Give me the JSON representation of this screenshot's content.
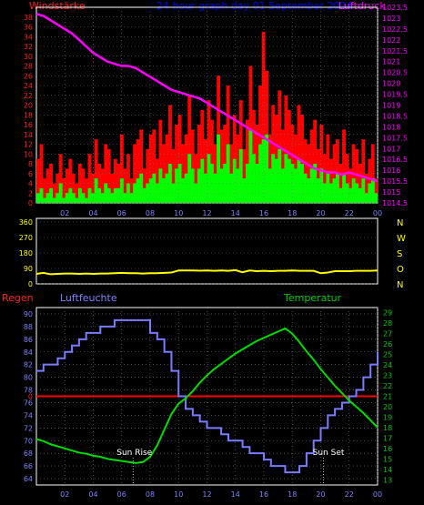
{
  "colors": {
    "background": "#000000",
    "frame": "#ffffff",
    "windspeed": "#ff0000",
    "windgust": "#00ff00",
    "pressure": "#ff00ff",
    "direction": "#ffff00",
    "humidity": "#7b7bff",
    "temperature": "#00dd00",
    "rain": "#ff0000",
    "title": "#0000ff",
    "scale_red": "#ff2020",
    "scale_pink": "#ff00ff",
    "scale_blue": "#8080ff",
    "scale_green": "#00cc00",
    "scale_yellow": "#ffff00",
    "grid": "#777777"
  },
  "header": {
    "left": "Windstärke",
    "title": "24 hour graph day  01 September 2024",
    "right": "Luftdruck"
  },
  "labels": {
    "regen": "Regen",
    "luftfeuchte": "Luftfeuchte",
    "temperatur": "Temperatur",
    "sun_rise": "Sun Rise",
    "sun_set": "Sun Set"
  },
  "chart_data": [
    {
      "type": "bar",
      "name": "wind",
      "x_range": [
        0,
        24
      ],
      "x_ticks": [
        "02",
        "04",
        "06",
        "08",
        "10",
        "12",
        "14",
        "16",
        "18",
        "20",
        "22",
        "00"
      ],
      "y_left_ticks": [
        0,
        2,
        4,
        6,
        8,
        10,
        12,
        14,
        16,
        18,
        20,
        22,
        24,
        26,
        28,
        30,
        32,
        34,
        36,
        38
      ],
      "y_left_range": [
        0,
        40
      ],
      "y_right_ticks": [
        "1014.5",
        "1015",
        "1015.5",
        "1016",
        "1016.5",
        "1017",
        "1017.5",
        "1018",
        "1018.5",
        "1019",
        "1019.5",
        "1020",
        "1020.5",
        "1021",
        "1021.5",
        "1022",
        "1022.5",
        "1023",
        "1023.5"
      ],
      "y_right_range": [
        1014.5,
        1023.5
      ],
      "series": [
        {
          "name": "windspeed",
          "values": [
            9,
            12,
            5,
            7,
            8,
            4,
            6,
            10,
            5,
            7,
            9,
            6,
            4,
            8,
            7,
            5,
            10,
            6,
            13,
            8,
            7,
            12,
            11,
            6,
            9,
            8,
            14,
            7,
            10,
            5,
            12,
            13,
            15,
            7,
            11,
            14,
            15,
            9,
            17,
            12,
            14,
            20,
            11,
            16,
            18,
            12,
            14,
            22,
            15,
            10,
            16,
            19,
            13,
            21,
            17,
            12,
            26,
            15,
            16,
            24,
            12,
            18,
            14,
            21,
            11,
            17,
            28,
            19,
            16,
            24,
            35,
            27,
            14,
            20,
            18,
            23,
            15,
            22,
            19,
            16,
            14,
            20,
            18,
            13,
            12,
            15,
            17,
            11,
            16,
            10,
            14,
            9,
            12,
            13,
            8,
            15,
            10,
            7,
            12,
            11,
            8,
            13,
            6,
            9,
            12,
            5
          ]
        },
        {
          "name": "windgust",
          "values": [
            2,
            3,
            1,
            2,
            3,
            1,
            2,
            4,
            1,
            2,
            3,
            2,
            1,
            3,
            2,
            1,
            3,
            2,
            5,
            3,
            2,
            4,
            3,
            2,
            3,
            3,
            5,
            2,
            4,
            2,
            4,
            5,
            6,
            3,
            4,
            5,
            6,
            4,
            7,
            5,
            6,
            8,
            4,
            7,
            8,
            5,
            6,
            10,
            7,
            4,
            7,
            9,
            6,
            10,
            8,
            6,
            14,
            7,
            8,
            12,
            6,
            9,
            7,
            11,
            5,
            8,
            15,
            10,
            8,
            12,
            13,
            14,
            7,
            10,
            9,
            11,
            7,
            10,
            9,
            8,
            7,
            9,
            8,
            6,
            5,
            7,
            8,
            5,
            7,
            4,
            6,
            4,
            5,
            6,
            3,
            6,
            4,
            3,
            5,
            4,
            3,
            5,
            2,
            4,
            5,
            2
          ]
        },
        {
          "name": "pressure",
          "x": [
            0,
            0.5,
            1,
            1.5,
            2,
            2.5,
            3,
            3.5,
            4,
            4.5,
            5,
            5.5,
            6,
            6.5,
            7,
            7.5,
            8,
            8.5,
            9,
            9.5,
            10,
            10.5,
            11,
            11.5,
            12,
            12.5,
            13,
            13.5,
            14,
            14.5,
            15,
            15.5,
            16,
            16.5,
            17,
            17.5,
            18,
            18.5,
            19,
            19.5,
            20,
            20.5,
            21,
            21.5,
            22,
            22.5,
            23,
            23.5,
            24
          ],
          "values": [
            1023.2,
            1023.1,
            1022.9,
            1022.7,
            1022.5,
            1022.3,
            1022.0,
            1021.7,
            1021.4,
            1021.2,
            1021.0,
            1020.9,
            1020.8,
            1020.8,
            1020.7,
            1020.5,
            1020.3,
            1020.1,
            1019.9,
            1019.7,
            1019.6,
            1019.5,
            1019.4,
            1019.3,
            1019.1,
            1018.9,
            1018.7,
            1018.5,
            1018.3,
            1018.1,
            1017.9,
            1017.7,
            1017.5,
            1017.3,
            1017.1,
            1016.9,
            1016.7,
            1016.5,
            1016.3,
            1016.1,
            1016.0,
            1015.9,
            1015.9,
            1015.8,
            1015.9,
            1015.8,
            1015.7,
            1015.6,
            1015.5
          ]
        }
      ]
    },
    {
      "type": "line",
      "name": "direction",
      "x_range": [
        0,
        24
      ],
      "y_left_ticks": [
        0,
        90,
        180,
        270,
        360
      ],
      "y_range": [
        0,
        360
      ],
      "y_right_labels": [
        "N",
        "W",
        "S",
        "O",
        "N"
      ],
      "series": [
        {
          "name": "direction",
          "x": [
            0,
            0.5,
            1,
            1.5,
            2,
            2.5,
            3,
            3.5,
            4,
            4.5,
            5,
            5.5,
            6,
            6.5,
            7,
            7.5,
            8,
            8.5,
            9,
            9.5,
            10,
            10.5,
            11,
            11.5,
            12,
            12.5,
            13,
            13.5,
            14,
            14.5,
            15,
            15.5,
            16,
            16.5,
            17,
            17.5,
            18,
            18.5,
            19,
            19.5,
            20,
            20.5,
            21,
            21.5,
            22,
            22.5,
            23,
            23.5,
            24
          ],
          "values": [
            58,
            64,
            56,
            58,
            60,
            60,
            58,
            60,
            58,
            60,
            60,
            62,
            64,
            62,
            62,
            60,
            62,
            62,
            64,
            66,
            78,
            78,
            78,
            77,
            78,
            76,
            78,
            76,
            80,
            68,
            78,
            74,
            76,
            74,
            76,
            76,
            78,
            76,
            76,
            76,
            62,
            66,
            74,
            74,
            74,
            76,
            76,
            76,
            78
          ]
        }
      ]
    },
    {
      "type": "line",
      "name": "humidity-temperature",
      "x_range": [
        0,
        24
      ],
      "x_ticks": [
        "02",
        "04",
        "06",
        "08",
        "10",
        "12",
        "14",
        "16",
        "18",
        "20",
        "22",
        "00"
      ],
      "y_left_ticks": [
        64,
        66,
        68,
        70,
        72,
        74,
        76,
        78,
        80,
        82,
        84,
        86,
        88,
        90
      ],
      "y_left_range": [
        63,
        91
      ],
      "y_right_ticks": [
        13,
        14,
        15,
        16,
        17,
        18,
        19,
        20,
        21,
        22,
        23,
        24,
        25,
        26,
        27,
        28,
        29
      ],
      "y_right_range": [
        12.5,
        29.5
      ],
      "rain_value": 0,
      "sun_rise_hour": 6.8,
      "sun_set_hour": 20.2,
      "series": [
        {
          "name": "humidity",
          "x": [
            0,
            0.5,
            1,
            1.5,
            2,
            2.5,
            3,
            3.5,
            4,
            4.5,
            5,
            5.5,
            6,
            6.5,
            7,
            7.5,
            8,
            8.5,
            9,
            9.5,
            10,
            10.5,
            11,
            11.5,
            12,
            12.5,
            13,
            13.5,
            14,
            14.5,
            15,
            15.5,
            16,
            16.5,
            17,
            17.5,
            18,
            18.5,
            19,
            19.5,
            20,
            20.5,
            21,
            21.5,
            22,
            22.5,
            23,
            23.5,
            24
          ],
          "values": [
            81,
            82,
            82,
            83,
            84,
            85,
            86,
            87,
            87,
            88,
            88,
            89,
            89,
            89,
            89,
            89,
            87,
            86,
            84,
            81,
            77,
            75,
            74,
            73,
            72,
            72,
            71,
            70,
            70,
            69,
            68,
            68,
            67,
            66,
            66,
            65,
            65,
            66,
            68,
            70,
            72,
            74,
            75,
            76,
            77,
            78,
            80,
            82,
            84
          ]
        },
        {
          "name": "temperature",
          "x": [
            0,
            0.5,
            1,
            1.5,
            2,
            2.5,
            3,
            3.5,
            4,
            4.5,
            5,
            5.5,
            6,
            6.5,
            7,
            7.5,
            8,
            8.5,
            9,
            9.5,
            10,
            10.5,
            11,
            11.5,
            12,
            12.5,
            13,
            13.5,
            14,
            14.5,
            15,
            15.5,
            16,
            16.5,
            17,
            17.5,
            18,
            18.5,
            19,
            19.5,
            20,
            20.5,
            21,
            21.5,
            22,
            22.5,
            23,
            23.5,
            24
          ],
          "values": [
            16.9,
            16.7,
            16.4,
            16.2,
            16.0,
            15.8,
            15.6,
            15.5,
            15.3,
            15.2,
            15.0,
            14.9,
            14.8,
            14.7,
            14.6,
            14.7,
            15.2,
            16.3,
            17.8,
            19.3,
            20.3,
            20.8,
            21.5,
            22.3,
            23.0,
            23.6,
            24.1,
            24.6,
            25.1,
            25.5,
            25.9,
            26.3,
            26.6,
            26.9,
            27.2,
            27.5,
            27.0,
            26.2,
            25.3,
            24.5,
            23.6,
            22.8,
            22.0,
            21.3,
            20.6,
            20.0,
            19.4,
            18.7,
            18.0
          ]
        }
      ]
    }
  ]
}
